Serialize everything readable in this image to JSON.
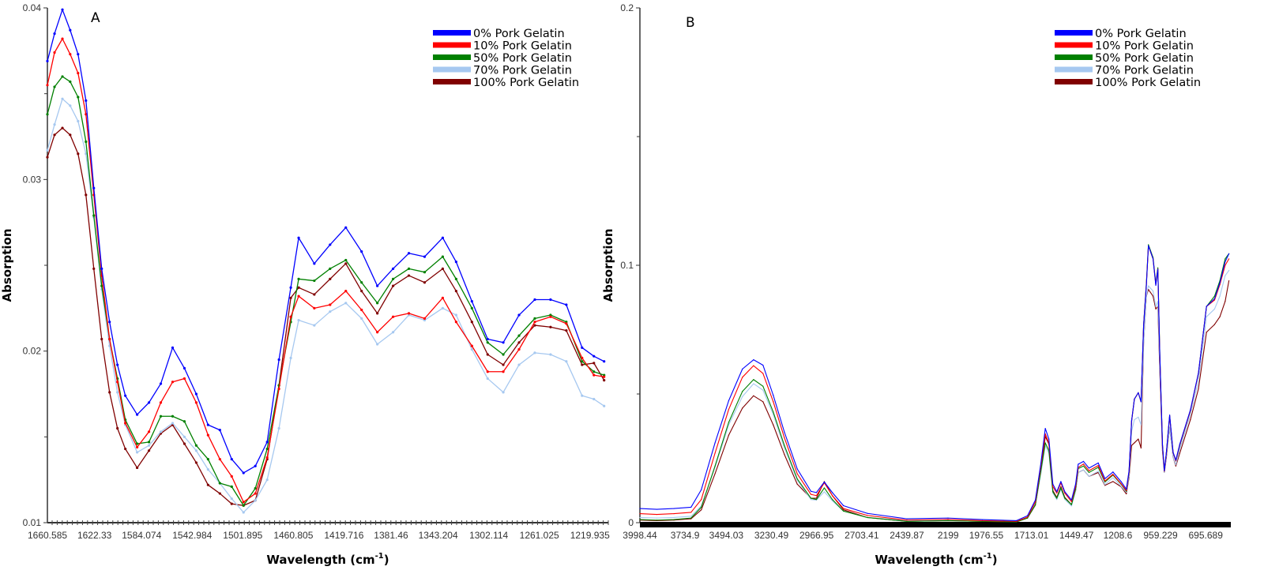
{
  "chart_data": [
    {
      "type": "line",
      "panel_label": "A",
      "xlabel": {
        "main": "Wavelength (cm",
        "sup": "-1",
        "end": ")"
      },
      "ylabel": "Absorption",
      "xlim": [
        1660.6,
        1205
      ],
      "ylim": [
        0.01,
        0.04
      ],
      "x_reversed": true,
      "y_ticks": [
        0.01,
        0.02,
        0.03,
        0.04
      ],
      "y_tick_labels": [
        "0.01",
        "0.02",
        "0.03",
        "0.04"
      ],
      "y_minor_ticks": [
        0.015,
        0.025,
        0.035
      ],
      "x_tick_labels": [
        "1660.585",
        "1622.33",
        "1584.074",
        "1542.984",
        "1501.895",
        "1460.805",
        "1419.716",
        "1381.46",
        "1343.204",
        "1302.114",
        "1261.025",
        "1219.935"
      ],
      "grid": false,
      "markers": true,
      "legend_position": "top-right",
      "x": [
        1660.6,
        1654.8,
        1648.4,
        1642.1,
        1635.7,
        1629.3,
        1622.9,
        1616.5,
        1610.1,
        1603.7,
        1597.3,
        1587.7,
        1578.1,
        1568.5,
        1558.9,
        1549.3,
        1539.7,
        1530.1,
        1520.5,
        1510.9,
        1501.3,
        1491.7,
        1482.1,
        1472.5,
        1462.9,
        1456.5,
        1443.8,
        1431.0,
        1418.2,
        1405.4,
        1392.6,
        1379.8,
        1367.0,
        1354.2,
        1339.5,
        1328.6,
        1315.8,
        1303.0,
        1290.3,
        1277.5,
        1264.7,
        1251.9,
        1239.1,
        1226.3,
        1216.7,
        1208.4
      ],
      "series": [
        {
          "name": "0% Pork Gelatin",
          "color": "#0000ff",
          "values": [
            0.0369,
            0.0385,
            0.0399,
            0.0387,
            0.0373,
            0.0346,
            0.0295,
            0.0248,
            0.0217,
            0.0192,
            0.0174,
            0.0163,
            0.017,
            0.0181,
            0.0202,
            0.019,
            0.0175,
            0.0157,
            0.0154,
            0.0137,
            0.0129,
            0.0133,
            0.0147,
            0.0195,
            0.0237,
            0.0266,
            0.0251,
            0.0262,
            0.0272,
            0.0258,
            0.0238,
            0.0248,
            0.0257,
            0.0255,
            0.0266,
            0.0252,
            0.0229,
            0.0207,
            0.0205,
            0.0221,
            0.023,
            0.023,
            0.0227,
            0.0202,
            0.0197,
            0.0194
          ]
        },
        {
          "name": "10% Pork Gelatin",
          "color": "#ff0000",
          "values": [
            0.0355,
            0.0374,
            0.0382,
            0.0373,
            0.0362,
            0.0338,
            0.0291,
            0.0244,
            0.0207,
            0.0182,
            0.0158,
            0.0144,
            0.0153,
            0.017,
            0.0182,
            0.0184,
            0.017,
            0.0151,
            0.0137,
            0.0127,
            0.0112,
            0.0117,
            0.0138,
            0.0178,
            0.022,
            0.0232,
            0.0225,
            0.0227,
            0.0235,
            0.0224,
            0.0211,
            0.022,
            0.0222,
            0.0219,
            0.0231,
            0.0217,
            0.0203,
            0.0188,
            0.0188,
            0.0201,
            0.0217,
            0.022,
            0.0216,
            0.0196,
            0.0186,
            0.0185
          ]
        },
        {
          "name": "50% Pork Gelatin",
          "color": "#008000",
          "values": [
            0.0338,
            0.0354,
            0.036,
            0.0357,
            0.0348,
            0.0322,
            0.0279,
            0.0238,
            0.0207,
            0.0184,
            0.016,
            0.0146,
            0.0147,
            0.0162,
            0.0162,
            0.0159,
            0.0145,
            0.0137,
            0.0123,
            0.0121,
            0.011,
            0.012,
            0.0143,
            0.018,
            0.0217,
            0.0242,
            0.0241,
            0.0248,
            0.0253,
            0.024,
            0.0228,
            0.0242,
            0.0248,
            0.0246,
            0.0255,
            0.0242,
            0.0225,
            0.0205,
            0.0198,
            0.0209,
            0.0219,
            0.0221,
            0.0217,
            0.0194,
            0.0188,
            0.0186
          ]
        },
        {
          "name": "70% Pork Gelatin",
          "color": "#a6c8f0",
          "values": [
            0.0317,
            0.0332,
            0.0347,
            0.0343,
            0.0334,
            0.0315,
            0.0278,
            0.0236,
            0.0203,
            0.0176,
            0.0157,
            0.0141,
            0.0145,
            0.0153,
            0.0158,
            0.015,
            0.0142,
            0.0131,
            0.0123,
            0.0114,
            0.0106,
            0.0113,
            0.0125,
            0.0155,
            0.0196,
            0.0218,
            0.0215,
            0.0223,
            0.0228,
            0.0219,
            0.0204,
            0.0211,
            0.0221,
            0.0218,
            0.0225,
            0.0221,
            0.0201,
            0.0184,
            0.0176,
            0.0192,
            0.0199,
            0.0198,
            0.0194,
            0.0174,
            0.0172,
            0.0168
          ]
        },
        {
          "name": "100% Pork Gelatin",
          "color": "#800000",
          "values": [
            0.0313,
            0.0326,
            0.033,
            0.0326,
            0.0315,
            0.0291,
            0.0248,
            0.0207,
            0.0176,
            0.0155,
            0.0143,
            0.0132,
            0.0142,
            0.0152,
            0.0157,
            0.0146,
            0.0135,
            0.0122,
            0.0117,
            0.0111,
            0.011,
            0.0113,
            0.0137,
            0.018,
            0.0231,
            0.0237,
            0.0233,
            0.0242,
            0.0251,
            0.0235,
            0.0222,
            0.0238,
            0.0244,
            0.024,
            0.0248,
            0.0235,
            0.0217,
            0.0198,
            0.0192,
            0.0205,
            0.0215,
            0.0214,
            0.0212,
            0.0192,
            0.0193,
            0.0183
          ]
        }
      ]
    },
    {
      "type": "line",
      "panel_label": "B",
      "xlabel": {
        "main": "Wavelength (cm",
        "sup": "-1",
        "end": ")"
      },
      "ylabel": "Absorption",
      "xlim": [
        3998.44,
        549
      ],
      "ylim": [
        0,
        0.2
      ],
      "x_reversed": true,
      "y_ticks": [
        0,
        0.1,
        0.2
      ],
      "y_tick_labels": [
        "0",
        "0.1",
        "0.2"
      ],
      "y_minor_ticks": [
        0.05,
        0.15
      ],
      "x_tick_labels": [
        "3998.44",
        "3734.9",
        "3494.03",
        "3230.49",
        "2966.95",
        "2703.41",
        "2439.87",
        "2199",
        "1976.55",
        "1713.01",
        "1449.47",
        "1208.6",
        "959.229",
        "695.689"
      ],
      "grid": false,
      "markers": false,
      "legend_position": "top-right",
      "x": [
        3998,
        3900,
        3800,
        3700,
        3640,
        3560,
        3480,
        3400,
        3335,
        3280,
        3220,
        3155,
        3080,
        3000,
        2968,
        2922,
        2875,
        2810,
        2670,
        2440,
        2200,
        2000,
        1800,
        1736,
        1690,
        1658,
        1632,
        1611,
        1588,
        1565,
        1541,
        1518,
        1479,
        1455,
        1440,
        1409,
        1377,
        1323,
        1284,
        1237,
        1190,
        1159,
        1143,
        1128,
        1112,
        1089,
        1073,
        1058,
        1042,
        1030,
        1003,
        987,
        975,
        964,
        948,
        937,
        925,
        906,
        886,
        870,
        847,
        785,
        738,
        691,
        644,
        613,
        582,
        560
      ],
      "series": [
        {
          "name": "0% Pork Gelatin",
          "color": "#0000ff",
          "values": [
            0.0055,
            0.0052,
            0.0055,
            0.006,
            0.0128,
            0.031,
            0.0474,
            0.0597,
            0.0633,
            0.0612,
            0.0495,
            0.0352,
            0.0209,
            0.0122,
            0.0117,
            0.0158,
            0.0117,
            0.0066,
            0.0036,
            0.0015,
            0.0018,
            0.0012,
            0.0008,
            0.0027,
            0.0088,
            0.023,
            0.0366,
            0.0325,
            0.015,
            0.012,
            0.016,
            0.012,
            0.0088,
            0.015,
            0.0227,
            0.0238,
            0.0212,
            0.0232,
            0.0171,
            0.0197,
            0.016,
            0.013,
            0.0202,
            0.0397,
            0.048,
            0.0505,
            0.047,
            0.0767,
            0.0922,
            0.1076,
            0.1025,
            0.0922,
            0.0984,
            0.0665,
            0.0305,
            0.0202,
            0.0274,
            0.0418,
            0.0274,
            0.0243,
            0.0305,
            0.0438,
            0.0582,
            0.084,
            0.087,
            0.0932,
            0.1014,
            0.1045
          ]
        },
        {
          "name": "10% Pork Gelatin",
          "color": "#ff0000",
          "values": [
            0.0035,
            0.0032,
            0.0035,
            0.004,
            0.009,
            0.027,
            0.044,
            0.0565,
            0.061,
            0.058,
            0.047,
            0.033,
            0.019,
            0.011,
            0.0105,
            0.0155,
            0.0105,
            0.0055,
            0.0028,
            0.001,
            0.0013,
            0.0008,
            0.0005,
            0.0022,
            0.008,
            0.022,
            0.0345,
            0.031,
            0.014,
            0.0115,
            0.0155,
            0.0115,
            0.0082,
            0.014,
            0.0215,
            0.0228,
            0.0202,
            0.0222,
            0.0162,
            0.0188,
            0.0152,
            0.0125,
            0.0198,
            0.0395,
            0.048,
            0.0505,
            0.047,
            0.0767,
            0.0925,
            0.1075,
            0.1025,
            0.0925,
            0.0985,
            0.066,
            0.03,
            0.02,
            0.0272,
            0.0415,
            0.0272,
            0.024,
            0.0302,
            0.0435,
            0.058,
            0.084,
            0.0865,
            0.0925,
            0.1,
            0.1025
          ]
        },
        {
          "name": "50% Pork Gelatin",
          "color": "#008000",
          "values": [
            0.0012,
            0.001,
            0.0012,
            0.0018,
            0.006,
            0.022,
            0.039,
            0.051,
            0.0556,
            0.053,
            0.043,
            0.03,
            0.017,
            0.0095,
            0.009,
            0.0135,
            0.009,
            0.0045,
            0.002,
            0.0005,
            0.0008,
            0.0005,
            0.0003,
            0.0018,
            0.007,
            0.02,
            0.031,
            0.028,
            0.012,
            0.0095,
            0.0135,
            0.0095,
            0.007,
            0.013,
            0.021,
            0.022,
            0.0195,
            0.0215,
            0.0158,
            0.0185,
            0.015,
            0.0122,
            0.0195,
            0.0395,
            0.048,
            0.0505,
            0.047,
            0.077,
            0.093,
            0.108,
            0.103,
            0.093,
            0.099,
            0.067,
            0.03,
            0.02,
            0.0272,
            0.0415,
            0.0272,
            0.024,
            0.03,
            0.0435,
            0.058,
            0.084,
            0.088,
            0.094,
            0.1025,
            0.1045
          ]
        },
        {
          "name": "70% Pork Gelatin",
          "color": "#a6c8f0",
          "values": [
            0.002,
            0.0018,
            0.002,
            0.0025,
            0.0065,
            0.0215,
            0.038,
            0.049,
            0.054,
            0.0515,
            0.042,
            0.029,
            0.0165,
            0.009,
            0.0088,
            0.012,
            0.0085,
            0.0045,
            0.002,
            0.0008,
            0.001,
            0.0008,
            0.0005,
            0.002,
            0.007,
            0.019,
            0.03,
            0.027,
            0.0115,
            0.009,
            0.013,
            0.009,
            0.0065,
            0.0125,
            0.0195,
            0.0205,
            0.018,
            0.02,
            0.0148,
            0.0175,
            0.0142,
            0.0118,
            0.018,
            0.0355,
            0.04,
            0.041,
            0.038,
            0.07,
            0.088,
            0.092,
            0.09,
            0.084,
            0.086,
            0.062,
            0.029,
            0.0195,
            0.026,
            0.037,
            0.0255,
            0.0225,
            0.0285,
            0.042,
            0.055,
            0.08,
            0.083,
            0.088,
            0.096,
            0.098
          ]
        },
        {
          "name": "100% Pork Gelatin",
          "color": "#800000",
          "values": [
            0.001,
            0.0008,
            0.001,
            0.0015,
            0.005,
            0.019,
            0.034,
            0.0445,
            0.0493,
            0.047,
            0.038,
            0.0265,
            0.015,
            0.0095,
            0.0095,
            0.016,
            0.0105,
            0.005,
            0.002,
            0.0005,
            0.0008,
            0.0005,
            0.0003,
            0.0018,
            0.0068,
            0.0195,
            0.0335,
            0.0305,
            0.0125,
            0.0098,
            0.014,
            0.0098,
            0.007,
            0.0125,
            0.0195,
            0.0205,
            0.018,
            0.0195,
            0.0145,
            0.016,
            0.014,
            0.0112,
            0.0175,
            0.03,
            0.031,
            0.0325,
            0.029,
            0.07,
            0.088,
            0.0906,
            0.088,
            0.083,
            0.084,
            0.06,
            0.028,
            0.0195,
            0.0255,
            0.037,
            0.0255,
            0.022,
            0.027,
            0.04,
            0.052,
            0.074,
            0.077,
            0.08,
            0.086,
            0.094
          ]
        }
      ]
    }
  ]
}
